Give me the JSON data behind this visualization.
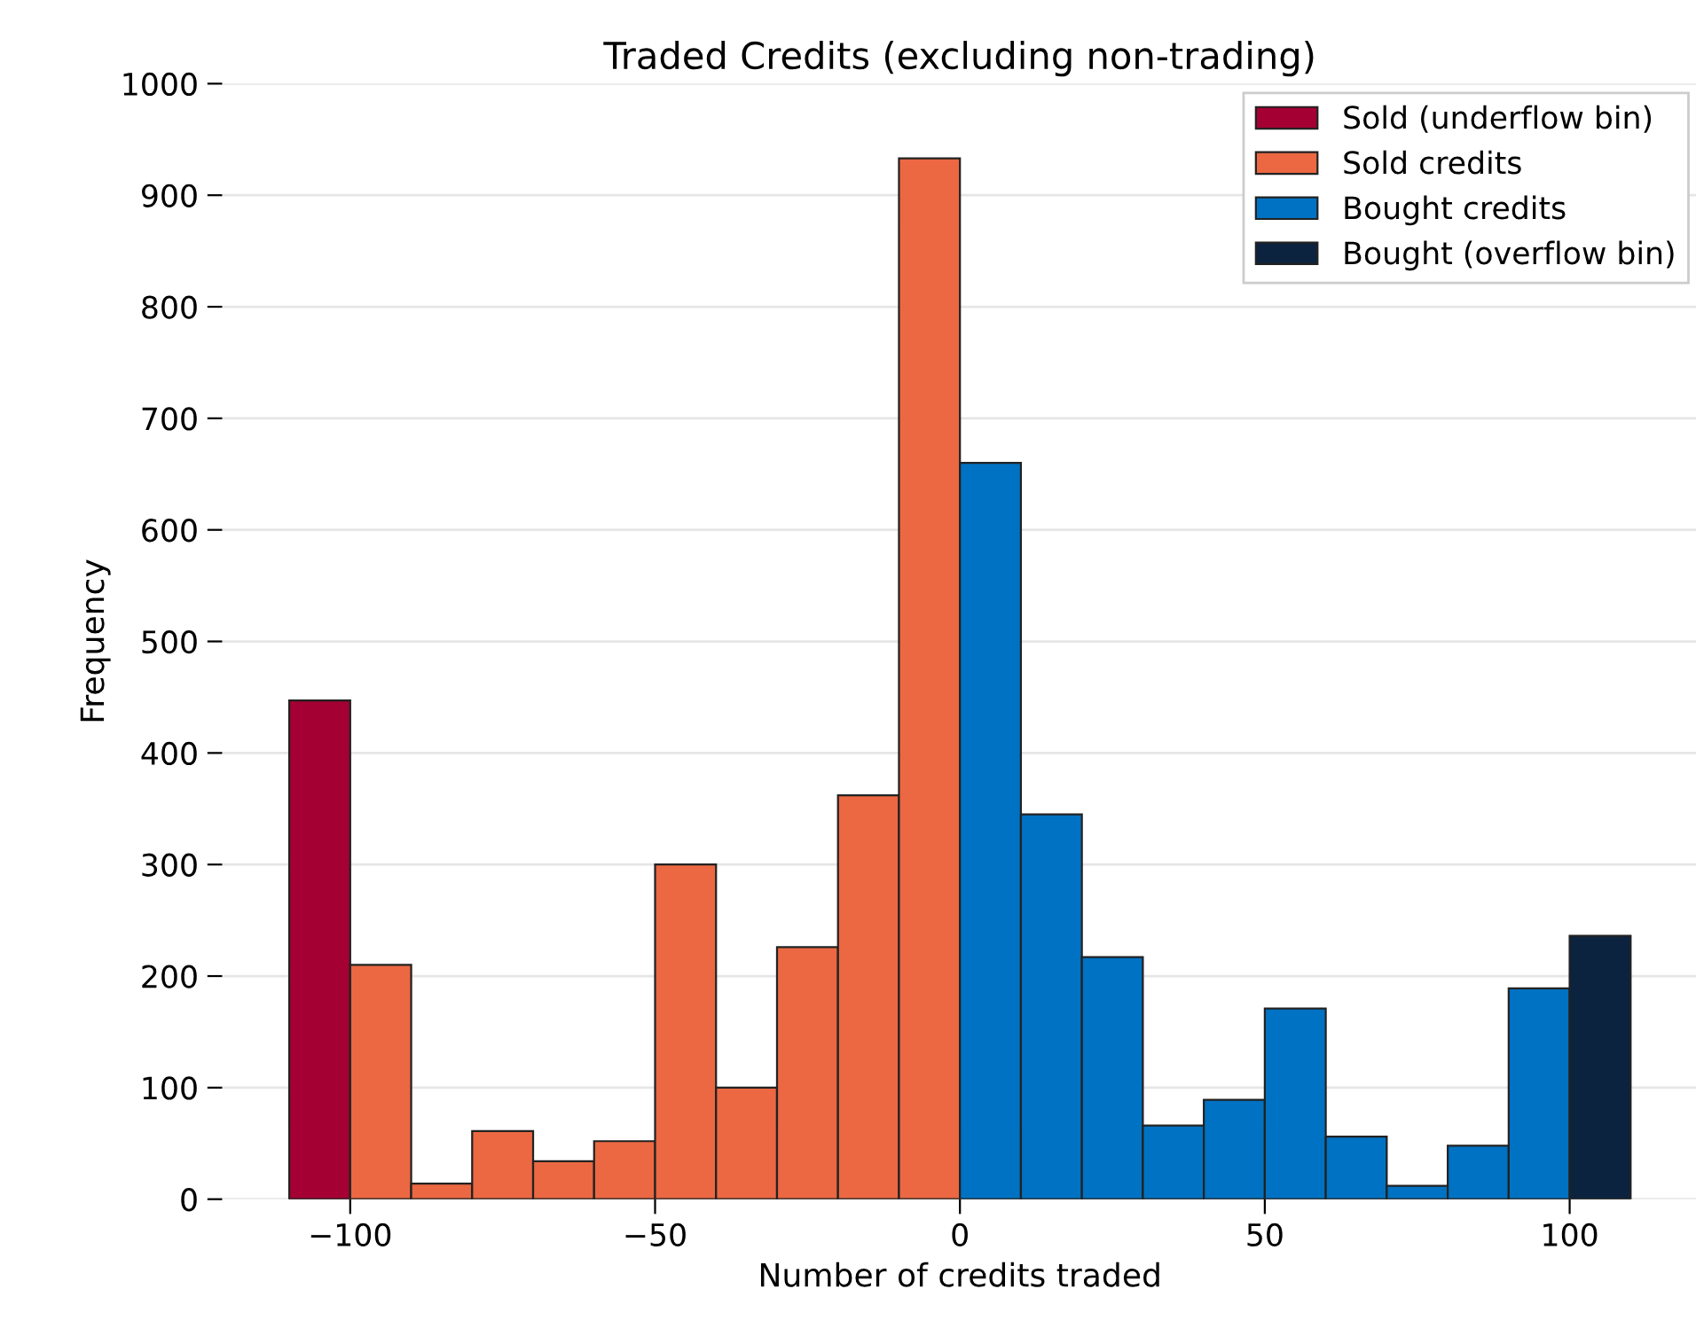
{
  "chart_data": {
    "type": "histogram",
    "title": "Traded Credits (excluding non-trading)",
    "xlabel": "Number of credits traded",
    "ylabel": "Frequency",
    "bins": [
      -110,
      -100,
      -90,
      -80,
      -70,
      -60,
      -50,
      -40,
      -30,
      -20,
      -10,
      0,
      10,
      20,
      30,
      40,
      50,
      60,
      70,
      80,
      90,
      100,
      110
    ],
    "series": [
      {
        "name": "Sold (underflow bin)",
        "color": "#a50034",
        "values": [
          447,
          null,
          null,
          null,
          null,
          null,
          null,
          null,
          null,
          null,
          null,
          null,
          null,
          null,
          null,
          null,
          null,
          null,
          null,
          null,
          null,
          null
        ]
      },
      {
        "name": "Sold credits",
        "color": "#eb6843",
        "values": [
          null,
          210,
          14,
          61,
          34,
          52,
          300,
          100,
          226,
          362,
          933,
          null,
          null,
          null,
          null,
          null,
          null,
          null,
          null,
          null,
          null,
          null
        ]
      },
      {
        "name": "Bought credits",
        "color": "#0072c3",
        "values": [
          null,
          null,
          null,
          null,
          null,
          null,
          null,
          null,
          null,
          null,
          null,
          660,
          345,
          217,
          66,
          89,
          171,
          56,
          12,
          48,
          189,
          null
        ]
      },
      {
        "name": "Bought (overflow bin)",
        "color": "#0c2340",
        "values": [
          null,
          null,
          null,
          null,
          null,
          null,
          null,
          null,
          null,
          null,
          null,
          null,
          null,
          null,
          null,
          null,
          null,
          null,
          null,
          null,
          null,
          236
        ]
      }
    ],
    "xlim": [
      -121,
      121
    ],
    "xticks": [
      {
        "value": -100,
        "label": "−100"
      },
      {
        "value": -50,
        "label": "−50"
      },
      0,
      50,
      100
    ],
    "ylim": [
      0,
      1000
    ],
    "yticks": [
      0,
      100,
      200,
      300,
      400,
      500,
      600,
      700,
      800,
      900,
      1000
    ],
    "grid": "y",
    "legend": "top right"
  }
}
